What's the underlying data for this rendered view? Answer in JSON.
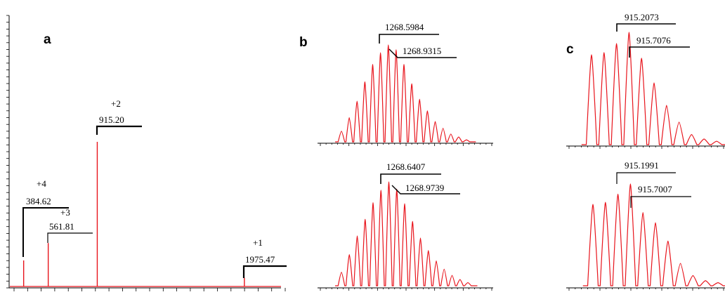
{
  "chart_data": [
    {
      "type": "bar",
      "panel": "a",
      "x": [
        384.62,
        561.81,
        915.2,
        1975.47
      ],
      "values": [
        9,
        15,
        50,
        3
      ],
      "ylim": [
        0,
        100
      ],
      "annotations": [
        {
          "charge": "+4",
          "mz": "384.62"
        },
        {
          "charge": "+3",
          "mz": "561.81"
        },
        {
          "charge": "+2",
          "mz": "915.20"
        },
        {
          "charge": "+1",
          "mz": "1975.47"
        }
      ]
    },
    {
      "type": "line",
      "panel": "b",
      "series": [
        {
          "peak_labels": [
            "1268.5984",
            "1268.9315"
          ],
          "values": [
            11,
            25,
            42,
            62,
            80,
            92,
            100,
            95,
            80,
            60,
            44,
            32,
            21,
            14,
            8,
            5,
            2
          ]
        },
        {
          "peak_labels": [
            "1268.6407",
            "1268.9739"
          ],
          "values": [
            13,
            30,
            48,
            64,
            80,
            92,
            100,
            93,
            79,
            62,
            46,
            34,
            24,
            16,
            10,
            6,
            3
          ]
        }
      ]
    },
    {
      "type": "line",
      "panel": "c",
      "series": [
        {
          "peak_labels": [
            "915.2073",
            "915.7076"
          ],
          "values": [
            80,
            82,
            90,
            100,
            77,
            55,
            35,
            20,
            9,
            5,
            3
          ]
        },
        {
          "peak_labels": [
            "915.1991",
            "915.7007"
          ],
          "values": [
            80,
            82,
            90,
            100,
            72,
            62,
            44,
            22,
            10,
            5,
            3
          ]
        }
      ]
    }
  ]
}
